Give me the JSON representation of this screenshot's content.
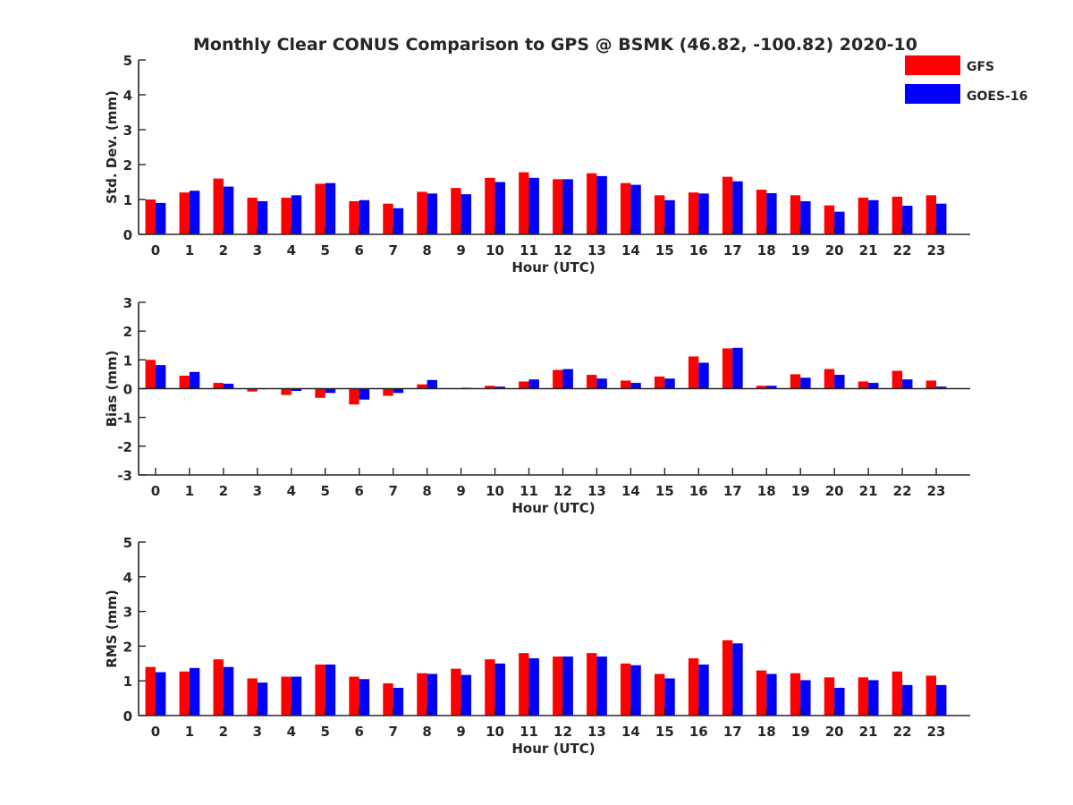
{
  "figure": {
    "title": "Monthly Clear CONUS Comparison to GPS @ BSMK (46.82, -100.82) 2020-10",
    "legend": [
      {
        "label": "GFS",
        "color": "#ff0000"
      },
      {
        "label": "GOES-16",
        "color": "#0000ff"
      }
    ]
  },
  "chart_data": [
    {
      "type": "bar",
      "ylabel": "Std. Dev. (mm)",
      "xlabel": "Hour (UTC)",
      "ylim": [
        0,
        5
      ],
      "yticks": [
        0,
        1,
        2,
        3,
        4,
        5
      ],
      "categories": [
        "0",
        "1",
        "2",
        "3",
        "4",
        "5",
        "6",
        "7",
        "8",
        "9",
        "10",
        "11",
        "12",
        "13",
        "14",
        "15",
        "16",
        "17",
        "18",
        "19",
        "20",
        "21",
        "22",
        "23"
      ],
      "series": [
        {
          "name": "GFS",
          "color": "#ff0000",
          "values": [
            1.0,
            1.2,
            1.6,
            1.05,
            1.05,
            1.45,
            0.95,
            0.88,
            1.22,
            1.33,
            1.62,
            1.78,
            1.58,
            1.75,
            1.47,
            1.12,
            1.2,
            1.65,
            1.28,
            1.12,
            0.83,
            1.05,
            1.08,
            1.12
          ]
        },
        {
          "name": "GOES-16",
          "color": "#0000ff",
          "values": [
            0.9,
            1.25,
            1.37,
            0.95,
            1.12,
            1.47,
            0.98,
            0.75,
            1.17,
            1.15,
            1.5,
            1.62,
            1.58,
            1.67,
            1.42,
            0.98,
            1.17,
            1.52,
            1.18,
            0.95,
            0.65,
            0.98,
            0.82,
            0.88
          ]
        }
      ]
    },
    {
      "type": "bar",
      "ylabel": "Bias (mm)",
      "xlabel": "Hour (UTC)",
      "ylim": [
        -3,
        3
      ],
      "yticks": [
        -3,
        -2,
        -1,
        0,
        1,
        2,
        3
      ],
      "categories": [
        "0",
        "1",
        "2",
        "3",
        "4",
        "5",
        "6",
        "7",
        "8",
        "9",
        "10",
        "11",
        "12",
        "13",
        "14",
        "15",
        "16",
        "17",
        "18",
        "19",
        "20",
        "21",
        "22",
        "23"
      ],
      "series": [
        {
          "name": "GFS",
          "color": "#ff0000",
          "values": [
            1.0,
            0.45,
            0.2,
            -0.1,
            -0.22,
            -0.32,
            -0.55,
            -0.25,
            0.15,
            0.0,
            0.1,
            0.25,
            0.65,
            0.48,
            0.28,
            0.42,
            1.12,
            1.4,
            0.1,
            0.5,
            0.68,
            0.25,
            0.62,
            0.28
          ]
        },
        {
          "name": "GOES-16",
          "color": "#0000ff",
          "values": [
            0.82,
            0.58,
            0.17,
            -0.02,
            -0.08,
            -0.15,
            -0.38,
            -0.15,
            0.3,
            0.03,
            0.07,
            0.32,
            0.68,
            0.35,
            0.2,
            0.35,
            0.9,
            1.42,
            0.1,
            0.38,
            0.48,
            0.2,
            0.32,
            0.07
          ]
        }
      ]
    },
    {
      "type": "bar",
      "ylabel": "RMS (mm)",
      "xlabel": "Hour (UTC)",
      "ylim": [
        0,
        5
      ],
      "yticks": [
        0,
        1,
        2,
        3,
        4,
        5
      ],
      "categories": [
        "0",
        "1",
        "2",
        "3",
        "4",
        "5",
        "6",
        "7",
        "8",
        "9",
        "10",
        "11",
        "12",
        "13",
        "14",
        "15",
        "16",
        "17",
        "18",
        "19",
        "20",
        "21",
        "22",
        "23"
      ],
      "series": [
        {
          "name": "GFS",
          "color": "#ff0000",
          "values": [
            1.4,
            1.27,
            1.62,
            1.07,
            1.12,
            1.47,
            1.12,
            0.93,
            1.22,
            1.35,
            1.62,
            1.8,
            1.7,
            1.8,
            1.5,
            1.2,
            1.65,
            2.17,
            1.3,
            1.22,
            1.1,
            1.1,
            1.27,
            1.15
          ]
        },
        {
          "name": "GOES-16",
          "color": "#0000ff",
          "values": [
            1.25,
            1.37,
            1.4,
            0.95,
            1.12,
            1.47,
            1.05,
            0.8,
            1.2,
            1.17,
            1.5,
            1.65,
            1.7,
            1.7,
            1.45,
            1.07,
            1.47,
            2.08,
            1.2,
            1.02,
            0.8,
            1.02,
            0.88,
            0.88
          ]
        }
      ]
    }
  ]
}
